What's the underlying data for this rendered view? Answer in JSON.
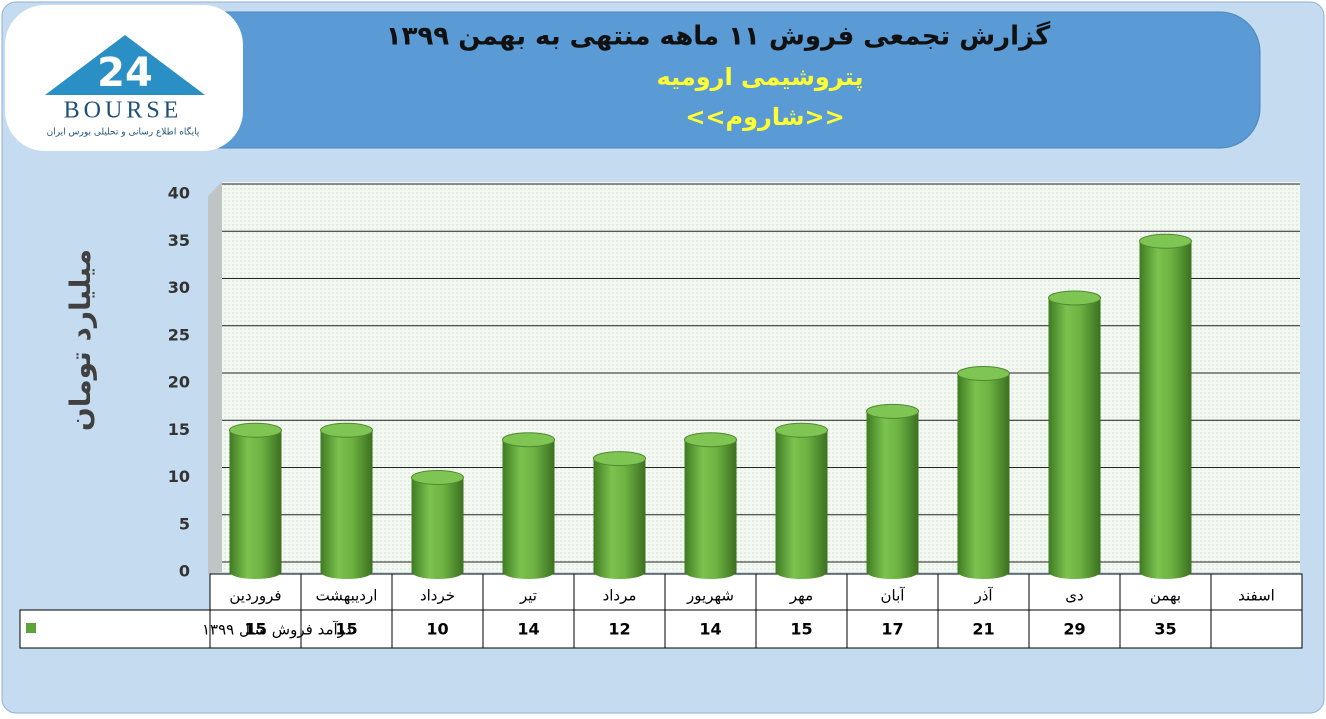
{
  "chart_data": {
    "type": "bar",
    "title": "گزارش تجمعی فروش ۱۱ ماهه منتهی به بهمن ۱۳۹۹",
    "subtitle": "پتروشیمی ارومیه",
    "subtitle2": "<<شاروم>>",
    "y_label": "میلیارد تومان",
    "logo": {
      "mark": "24",
      "name": "BOURSE",
      "tagline": "پایگاه اطلاع رسانی و تحلیلی بورس ایران"
    },
    "categories": [
      "فروردین",
      "اردیبهشت",
      "خرداد",
      "تیر",
      "مرداد",
      "شهریور",
      "مهر",
      "آبان",
      "آذر",
      "دی",
      "بهمن",
      "اسفند"
    ],
    "series": [
      {
        "name": "درآمد فروش سال ۱۳۹۹",
        "color": "#5ea33a",
        "values": [
          15,
          15,
          10,
          14,
          12,
          14,
          15,
          17,
          21,
          29,
          35,
          null
        ]
      }
    ],
    "ylim": [
      0,
      40
    ],
    "yticks": [
      0,
      5,
      10,
      15,
      20,
      25,
      30,
      35,
      40
    ],
    "grid": true
  }
}
